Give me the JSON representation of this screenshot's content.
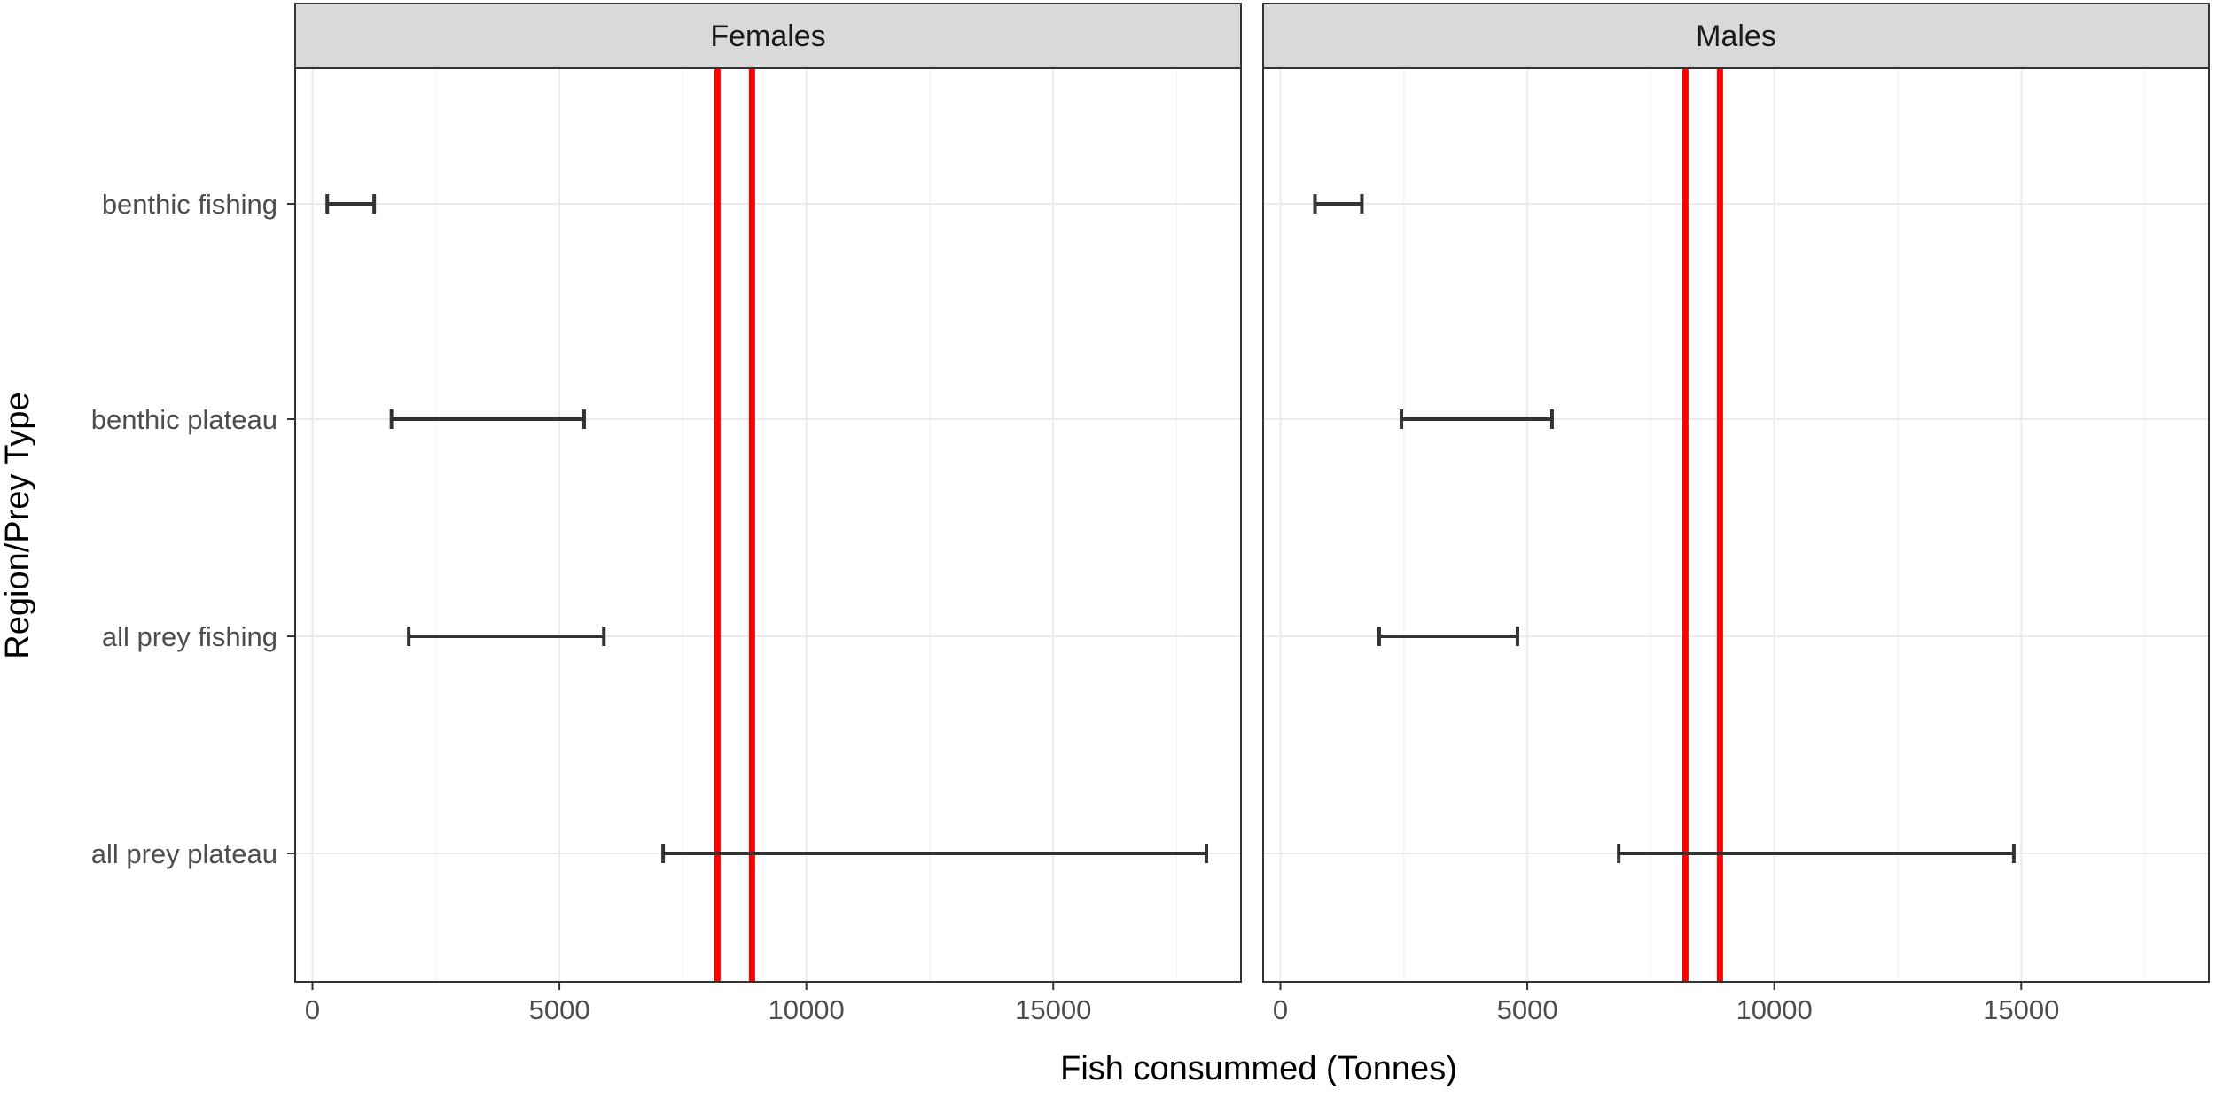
{
  "chart_data": {
    "type": "errorbar",
    "xlabel": "Fish consummed (Tonnes)",
    "ylabel": "Region/Prey Type",
    "categories": [
      "benthic fishing",
      "benthic plateau",
      "all prey fishing",
      "all prey plateau"
    ],
    "x_ticks": [
      "0",
      "5000",
      "10000",
      "15000"
    ],
    "xlim": [
      -350,
      18800
    ],
    "reference_lines": [
      8200,
      8900
    ],
    "reference_line_color": "#ff0000",
    "errorbar_color": "#333333",
    "strip_fill": "#d9d9d9",
    "grid": true,
    "facets": [
      {
        "label": "Females",
        "intervals": [
          {
            "category": "benthic fishing",
            "low": 300,
            "high": 1250
          },
          {
            "category": "benthic plateau",
            "low": 1600,
            "high": 5500
          },
          {
            "category": "all prey fishing",
            "low": 1950,
            "high": 5900
          },
          {
            "category": "all prey plateau",
            "low": 7100,
            "high": 18100
          }
        ]
      },
      {
        "label": "Males",
        "intervals": [
          {
            "category": "benthic fishing",
            "low": 700,
            "high": 1650
          },
          {
            "category": "benthic plateau",
            "low": 2450,
            "high": 5500
          },
          {
            "category": "all prey fishing",
            "low": 2000,
            "high": 4800
          },
          {
            "category": "all prey plateau",
            "low": 6850,
            "high": 14850
          }
        ]
      }
    ]
  }
}
